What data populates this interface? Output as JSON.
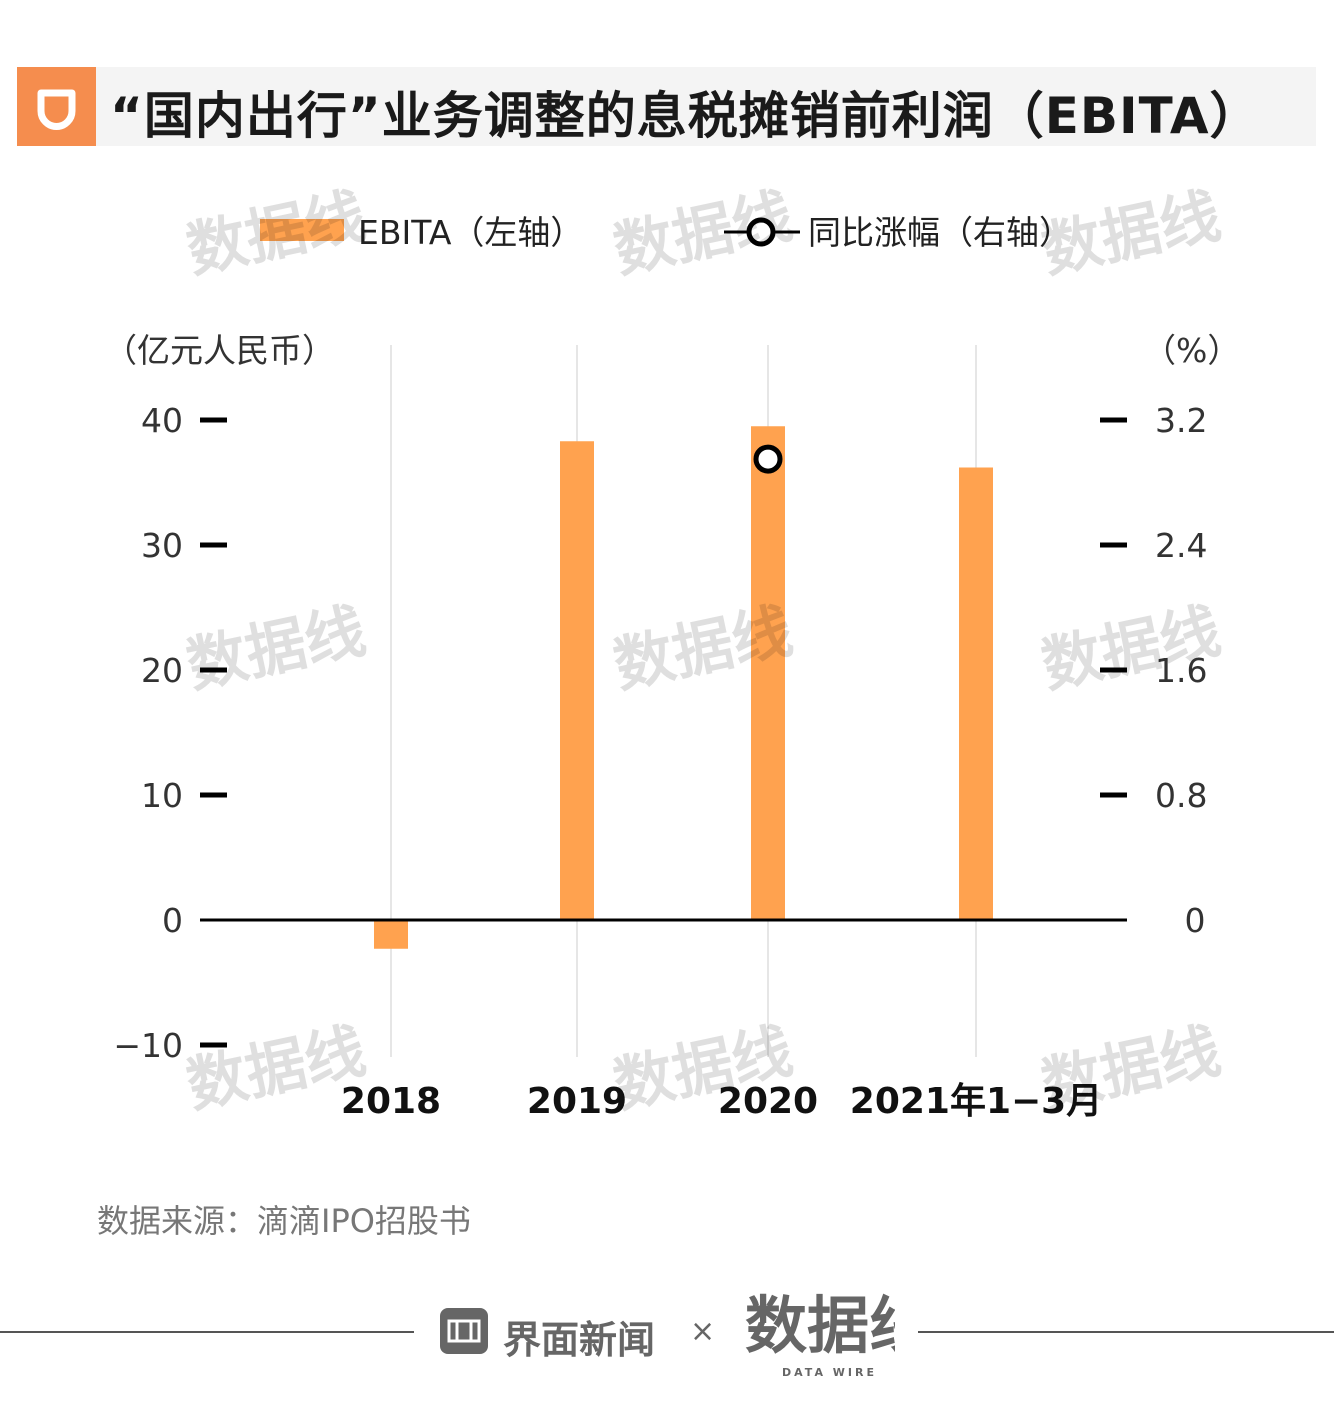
{
  "title": "“国内出行”业务调整的息税摊销前利润（EBITA）",
  "legend": {
    "bar_label": "EBITA（左轴）",
    "line_label": "同比涨幅（右轴）"
  },
  "colors": {
    "bar": "#ffa24f",
    "logo_bg": "#f58d4e",
    "title_bg": "#f4f4f4",
    "axis": "#000000"
  },
  "source": "数据来源：滴滴IPO招股书",
  "footer": {
    "brand": "界面新闻",
    "times": "×",
    "partner_logo_text": "数据线",
    "partner_tagline": "DATA WIRE"
  },
  "watermark_text": "数据线",
  "chart_data": {
    "type": "bar",
    "categories": [
      "2018",
      "2019",
      "2020",
      "2021年1−3月"
    ],
    "series": [
      {
        "name": "EBITA（左轴）",
        "axis": "left",
        "type": "bar",
        "values": [
          -2.3,
          38.3,
          39.5,
          36.2
        ]
      },
      {
        "name": "同比涨幅（右轴）",
        "axis": "right",
        "type": "line",
        "values": [
          null,
          null,
          2.95,
          null
        ]
      }
    ],
    "left_axis": {
      "unit": "（亿元人民币）",
      "ylim": [
        -10,
        40
      ],
      "ticks": [
        -10,
        0,
        10,
        20,
        30,
        40
      ],
      "tick_labels": [
        "−10",
        "0",
        "10",
        "20",
        "30",
        "40"
      ]
    },
    "right_axis": {
      "unit": "（%）",
      "ylim": [
        -0.8,
        3.2
      ],
      "ticks": [
        0,
        0.8,
        1.6,
        2.4,
        3.2
      ],
      "tick_labels": [
        "0",
        "0.8",
        "1.6",
        "2.4",
        "3.2"
      ]
    },
    "xlabel": "",
    "ylabel": "",
    "grid": "vertical lines at categories",
    "legend_position": "top"
  }
}
